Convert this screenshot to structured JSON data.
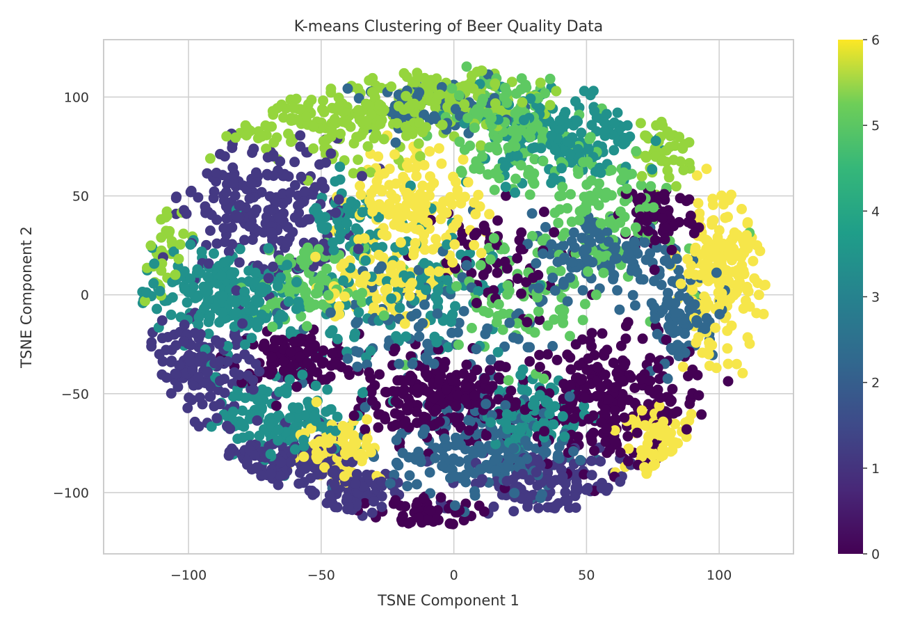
{
  "chart_data": {
    "type": "scatter",
    "title": "K-means Clustering of Beer Quality Data",
    "xlabel": "TSNE Component 1",
    "ylabel": "TSNE Component 2",
    "xlim": [
      -132,
      128
    ],
    "ylim": [
      -131,
      129
    ],
    "xticks": [
      -100,
      -50,
      0,
      50,
      100
    ],
    "yticks": [
      -100,
      -50,
      0,
      50,
      100
    ],
    "xtick_labels": [
      "−100",
      "−50",
      "0",
      "50",
      "100"
    ],
    "ytick_labels": [
      "−100",
      "−50",
      "0",
      "50",
      "100"
    ],
    "grid": true,
    "colorbar": {
      "label": "",
      "ticks": [
        0,
        1,
        2,
        3,
        4,
        5,
        6
      ],
      "tick_labels": [
        "0",
        "1",
        "2",
        "3",
        "4",
        "5",
        "6"
      ],
      "colormap": "viridis",
      "range": [
        0,
        6
      ]
    },
    "clusters": [
      {
        "label": 0,
        "color": "#440154",
        "regions": [
          {
            "cx": -5,
            "cy": -52,
            "rx": 25,
            "ry": 18,
            "n": 220
          },
          {
            "cx": 60,
            "cy": -55,
            "rx": 30,
            "ry": 28,
            "n": 260
          },
          {
            "cx": -60,
            "cy": -32,
            "rx": 20,
            "ry": 10,
            "n": 110
          },
          {
            "cx": 77,
            "cy": 40,
            "rx": 12,
            "ry": 16,
            "n": 80
          },
          {
            "cx": -10,
            "cy": -110,
            "rx": 15,
            "ry": 7,
            "n": 60
          },
          {
            "cx": 10,
            "cy": 15,
            "rx": 25,
            "ry": 25,
            "n": 60
          }
        ]
      },
      {
        "label": 1,
        "color": "#443983",
        "regions": [
          {
            "cx": -72,
            "cy": 42,
            "rx": 28,
            "ry": 30,
            "n": 240
          },
          {
            "cx": -95,
            "cy": -38,
            "rx": 18,
            "ry": 20,
            "n": 150
          },
          {
            "cx": -68,
            "cy": -88,
            "rx": 25,
            "ry": 15,
            "n": 160
          },
          {
            "cx": -37,
            "cy": -100,
            "rx": 12,
            "ry": 10,
            "n": 70
          },
          {
            "cx": 35,
            "cy": -95,
            "rx": 25,
            "ry": 14,
            "n": 120
          }
        ]
      },
      {
        "label": 2,
        "color": "#31688e",
        "regions": [
          {
            "cx": 10,
            "cy": -78,
            "rx": 28,
            "ry": 22,
            "n": 200
          },
          {
            "cx": 58,
            "cy": 20,
            "rx": 25,
            "ry": 18,
            "n": 130
          },
          {
            "cx": 85,
            "cy": -10,
            "rx": 12,
            "ry": 20,
            "n": 90
          },
          {
            "cx": -8,
            "cy": 95,
            "rx": 22,
            "ry": 10,
            "n": 70
          },
          {
            "cx": -15,
            "cy": -15,
            "rx": 35,
            "ry": 30,
            "n": 90
          }
        ]
      },
      {
        "label": 3,
        "color": "#21918c",
        "regions": [
          {
            "cx": -88,
            "cy": 0,
            "rx": 28,
            "ry": 20,
            "n": 220
          },
          {
            "cx": -65,
            "cy": -62,
            "rx": 20,
            "ry": 16,
            "n": 140
          },
          {
            "cx": 30,
            "cy": -60,
            "rx": 15,
            "ry": 15,
            "n": 90
          },
          {
            "cx": 40,
            "cy": 80,
            "rx": 25,
            "ry": 20,
            "n": 160
          },
          {
            "cx": -10,
            "cy": 0,
            "rx": 30,
            "ry": 35,
            "n": 110
          },
          {
            "cx": -40,
            "cy": 35,
            "rx": 12,
            "ry": 15,
            "n": 60
          }
        ]
      },
      {
        "label": 4,
        "color": "#5ec962",
        "regions": [
          {
            "cx": 20,
            "cy": 85,
            "rx": 20,
            "ry": 25,
            "n": 150
          },
          {
            "cx": -55,
            "cy": 5,
            "rx": 15,
            "ry": 15,
            "n": 90
          },
          {
            "cx": 25,
            "cy": 0,
            "rx": 30,
            "ry": 30,
            "n": 100
          },
          {
            "cx": 60,
            "cy": 45,
            "rx": 20,
            "ry": 25,
            "n": 100
          }
        ]
      },
      {
        "label": 5,
        "color": "#95d53d",
        "regions": [
          {
            "cx": -45,
            "cy": 88,
            "rx": 40,
            "ry": 18,
            "n": 220
          },
          {
            "cx": 0,
            "cy": 100,
            "rx": 25,
            "ry": 10,
            "n": 120
          },
          {
            "cx": -110,
            "cy": 25,
            "rx": 8,
            "ry": 20,
            "n": 50
          },
          {
            "cx": 80,
            "cy": 75,
            "rx": 10,
            "ry": 15,
            "n": 50
          }
        ]
      },
      {
        "label": 6,
        "color": "#f6e64a",
        "regions": [
          {
            "cx": -15,
            "cy": 45,
            "rx": 20,
            "ry": 25,
            "n": 180
          },
          {
            "cx": -30,
            "cy": 5,
            "rx": 20,
            "ry": 15,
            "n": 90
          },
          {
            "cx": 100,
            "cy": 10,
            "rx": 14,
            "ry": 32,
            "n": 200
          },
          {
            "cx": 78,
            "cy": -75,
            "rx": 12,
            "ry": 14,
            "n": 80
          },
          {
            "cx": -43,
            "cy": -78,
            "rx": 13,
            "ry": 14,
            "n": 100
          }
        ]
      }
    ]
  }
}
